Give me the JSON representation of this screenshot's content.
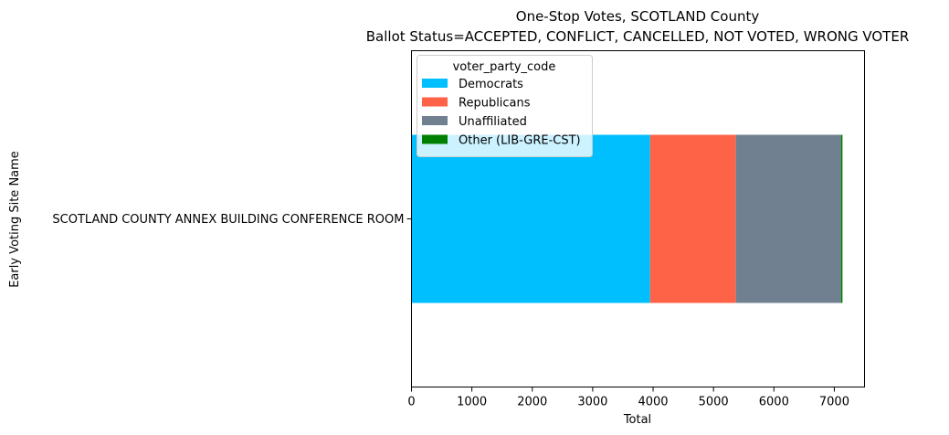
{
  "chart_data": {
    "type": "bar",
    "orientation": "horizontal",
    "stacked": true,
    "title_line1": "One-Stop Votes, SCOTLAND County",
    "title_line2": "Ballot Status=ACCEPTED, CONFLICT, CANCELLED, NOT VOTED, WRONG VOTER",
    "xlabel": "Total",
    "ylabel": "Early Voting Site Name",
    "categories": [
      "SCOTLAND COUNTY ANNEX BUILDING CONFERENCE ROOM"
    ],
    "xlim": [
      0,
      7500
    ],
    "x_ticks": [
      0,
      1000,
      2000,
      3000,
      4000,
      5000,
      6000,
      7000
    ],
    "grid": false,
    "legend": {
      "title": "voter_party_code",
      "placement": "top-left"
    },
    "series": [
      {
        "name": "Democrats",
        "values": [
          3950
        ],
        "color": "#00bfff"
      },
      {
        "name": "Republicans",
        "values": [
          1420
        ],
        "color": "#ff6347"
      },
      {
        "name": "Unaffiliated",
        "values": [
          1740
        ],
        "color": "#708090"
      },
      {
        "name": "Other (LIB-GRE-CST)",
        "values": [
          25
        ],
        "color": "#008000"
      }
    ]
  }
}
